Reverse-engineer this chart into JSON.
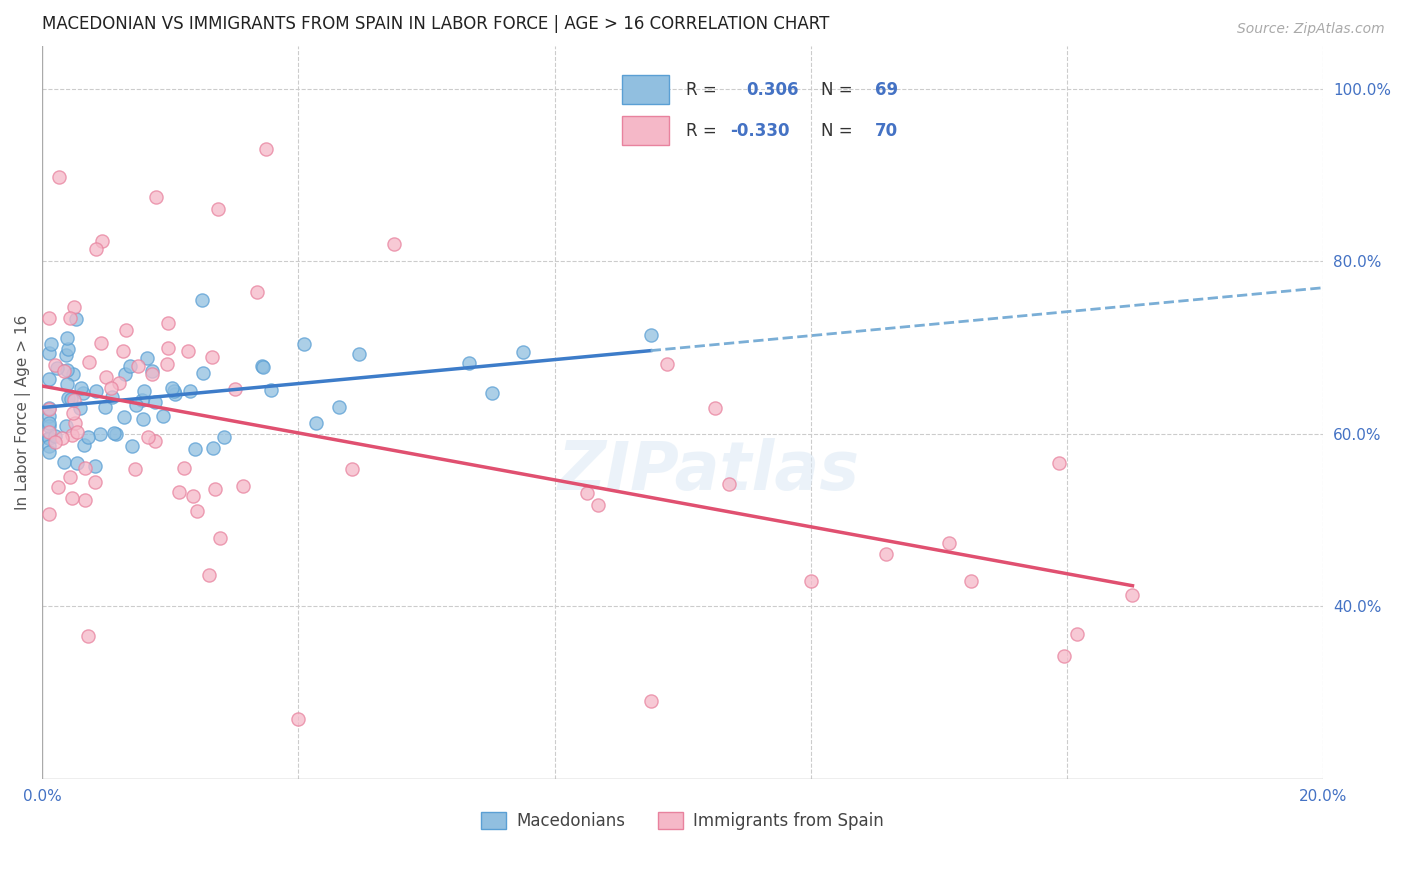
{
  "title": "MACEDONIAN VS IMMIGRANTS FROM SPAIN IN LABOR FORCE | AGE > 16 CORRELATION CHART",
  "source": "Source: ZipAtlas.com",
  "ylabel": "In Labor Force | Age > 16",
  "x_min": 0.0,
  "x_max": 0.2,
  "y_min": 0.2,
  "y_max": 1.05,
  "x_tick_positions": [
    0.0,
    0.04,
    0.08,
    0.12,
    0.16,
    0.2
  ],
  "x_tick_labels": [
    "0.0%",
    "",
    "",
    "",
    "",
    "20.0%"
  ],
  "y_ticks_right": [
    0.4,
    0.6,
    0.8,
    1.0
  ],
  "y_tick_labels_right": [
    "40.0%",
    "60.0%",
    "80.0%",
    "100.0%"
  ],
  "R_macedonian": 0.306,
  "N_macedonian": 69,
  "R_spain": -0.33,
  "N_spain": 70,
  "blue_color": "#91bfe0",
  "pink_color": "#f5b8c8",
  "blue_edge": "#5a9fd4",
  "pink_edge": "#e8829e",
  "trend_blue": "#3d7cc9",
  "trend_pink": "#e05070",
  "trend_blue_dash": "#7aaed6",
  "background_color": "#ffffff",
  "grid_color": "#cccccc"
}
